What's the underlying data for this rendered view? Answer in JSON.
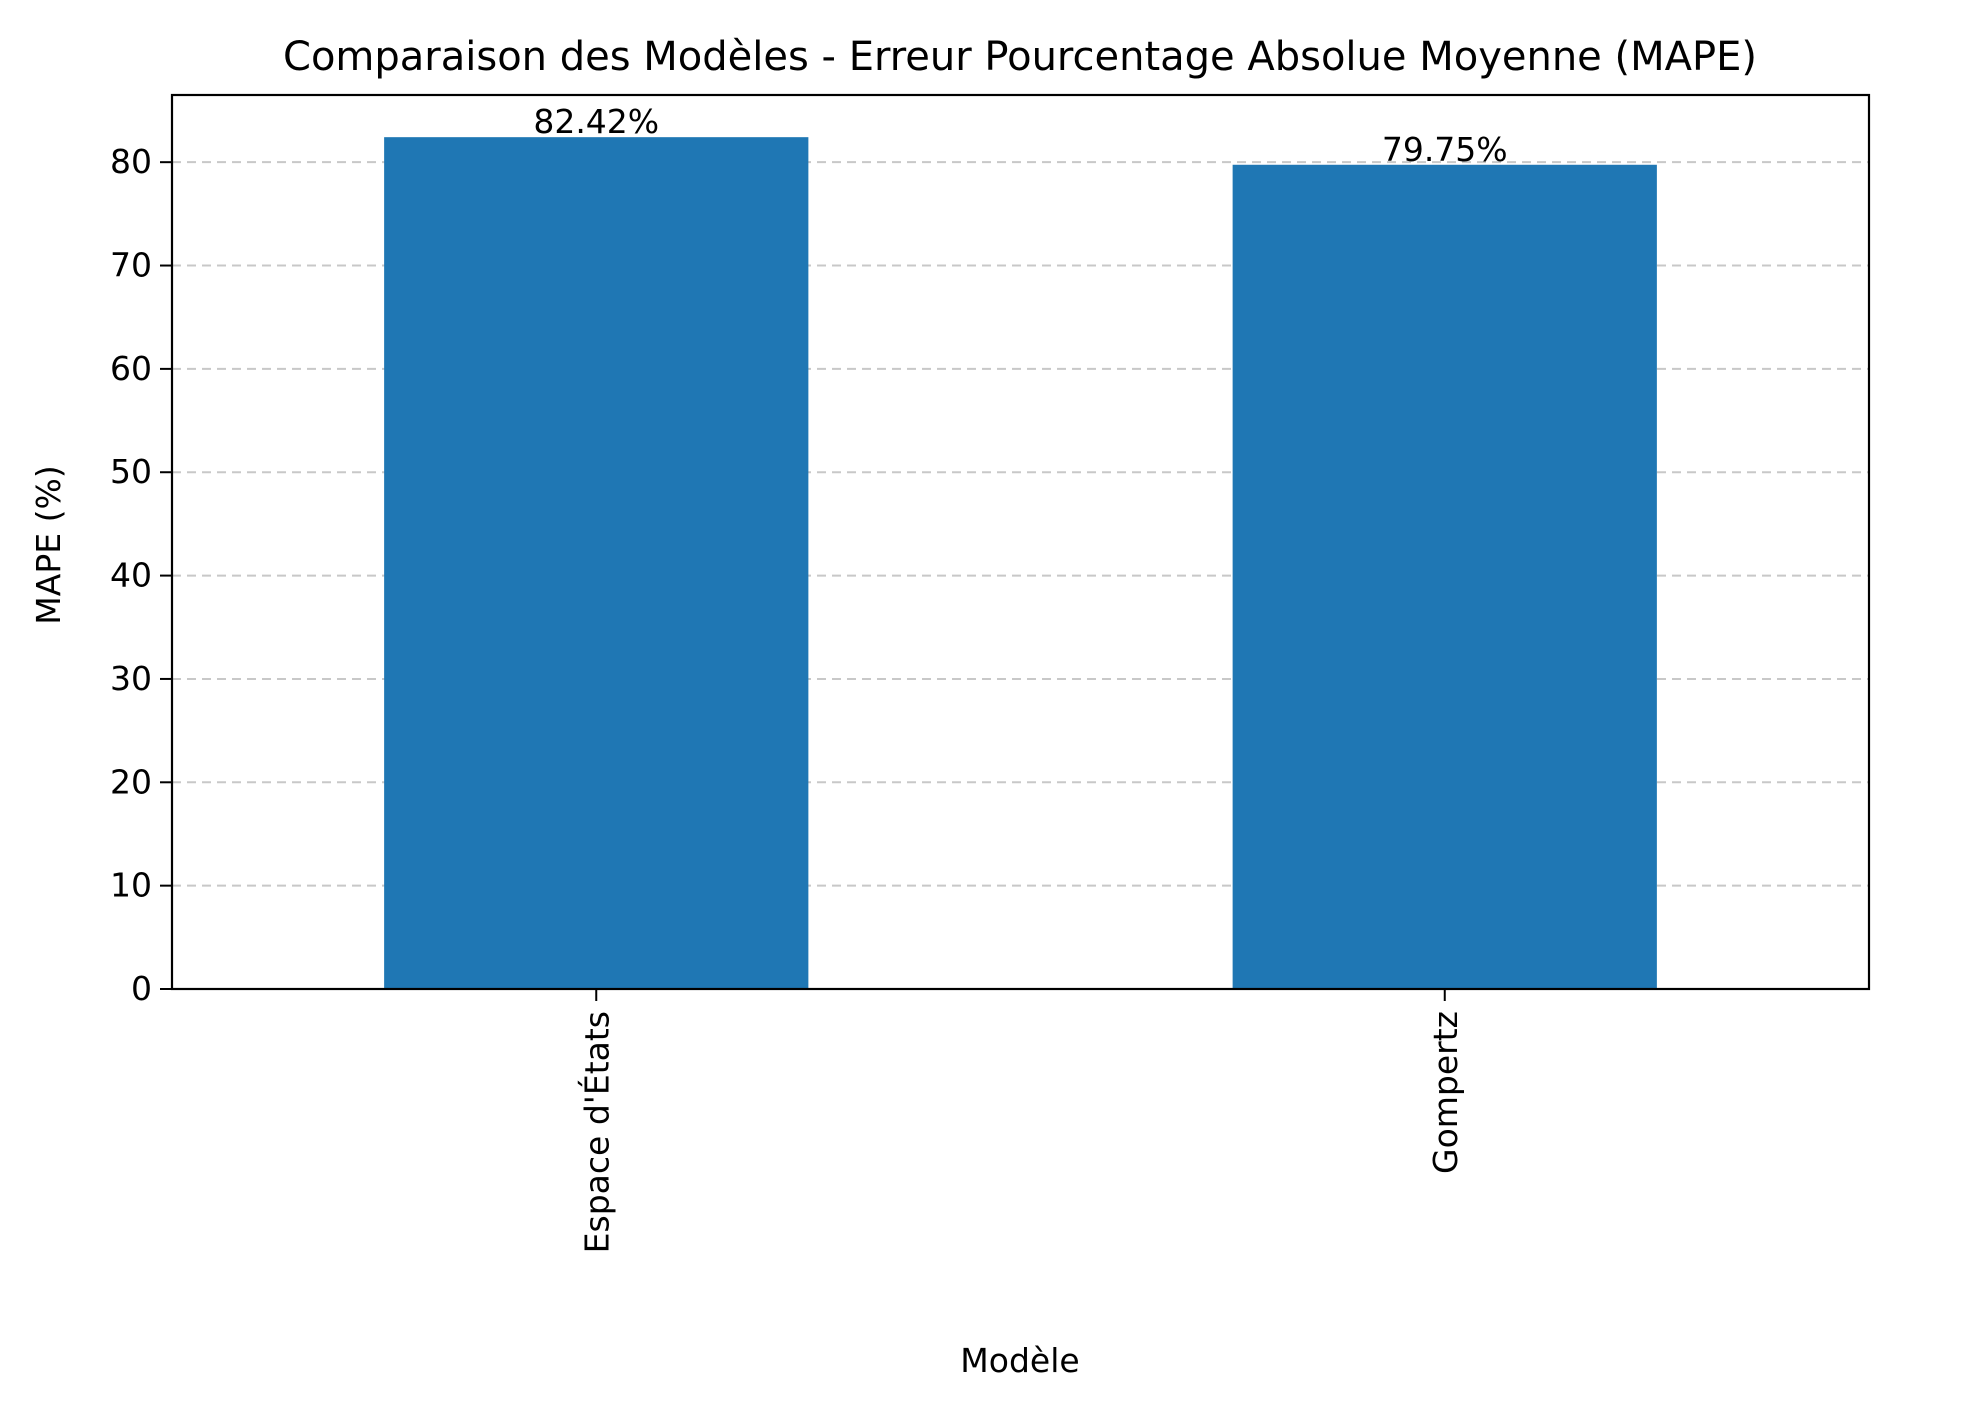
{
  "chart_data": {
    "type": "bar",
    "title": "Comparaison des Modèles - Erreur Pourcentage Absolue Moyenne (MAPE)",
    "xlabel": "Modèle",
    "ylabel": "MAPE (%)",
    "categories": [
      "Espace d'États",
      "Gompertz"
    ],
    "values": [
      82.42,
      79.75
    ],
    "value_labels": [
      "82.42%",
      "79.75%"
    ],
    "ylim": [
      0,
      86.5
    ],
    "yticks": [
      0,
      10,
      20,
      30,
      40,
      50,
      60,
      70,
      80
    ],
    "y_grid": true,
    "x_tick_rotation": "vertical",
    "colors": {
      "bar": "#1f77b4",
      "grid": "#c8c8c8",
      "axis": "#000000"
    }
  }
}
